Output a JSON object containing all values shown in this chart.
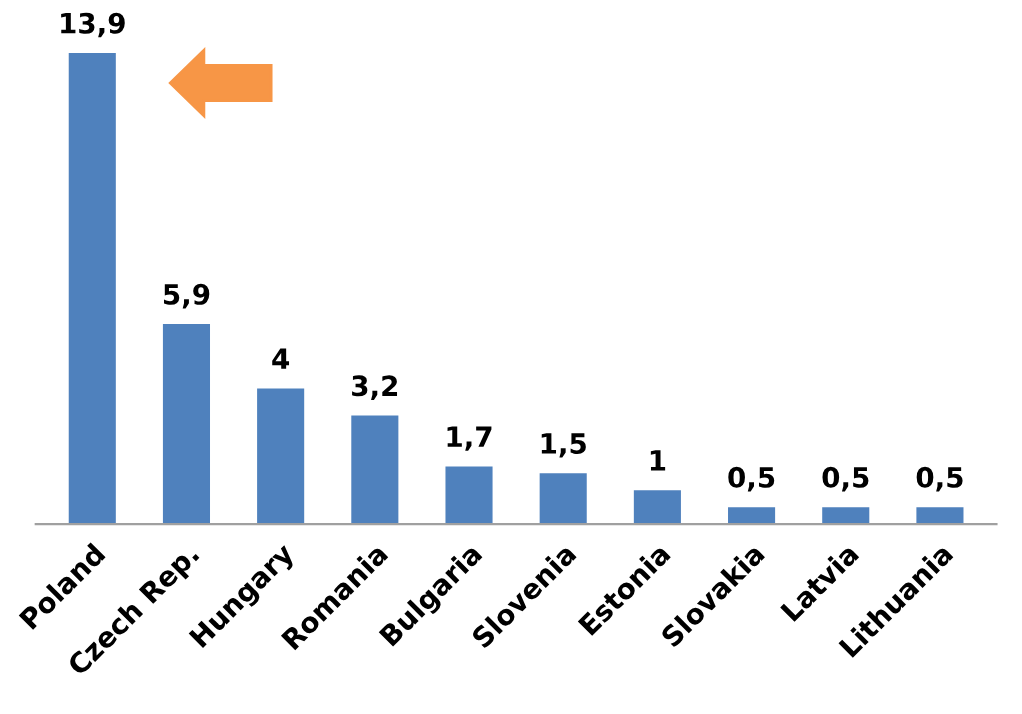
{
  "chart_data": {
    "type": "bar",
    "categories": [
      "Poland",
      "Czech Rep.",
      "Hungary",
      "Romania",
      "Bulgaria",
      "Slovenia",
      "Estonia",
      "Slovakia",
      "Latvia",
      "Lithuania"
    ],
    "values": [
      13.9,
      5.9,
      4,
      3.2,
      1.7,
      1.5,
      1,
      0.5,
      0.5,
      0.5
    ],
    "value_labels": [
      "13,9",
      "5,9",
      "4",
      "3,2",
      "1,7",
      "1,5",
      "1",
      "0,5",
      "0,5",
      "0,5"
    ],
    "color": "#4f81bd",
    "grid": false,
    "legend": false
  }
}
